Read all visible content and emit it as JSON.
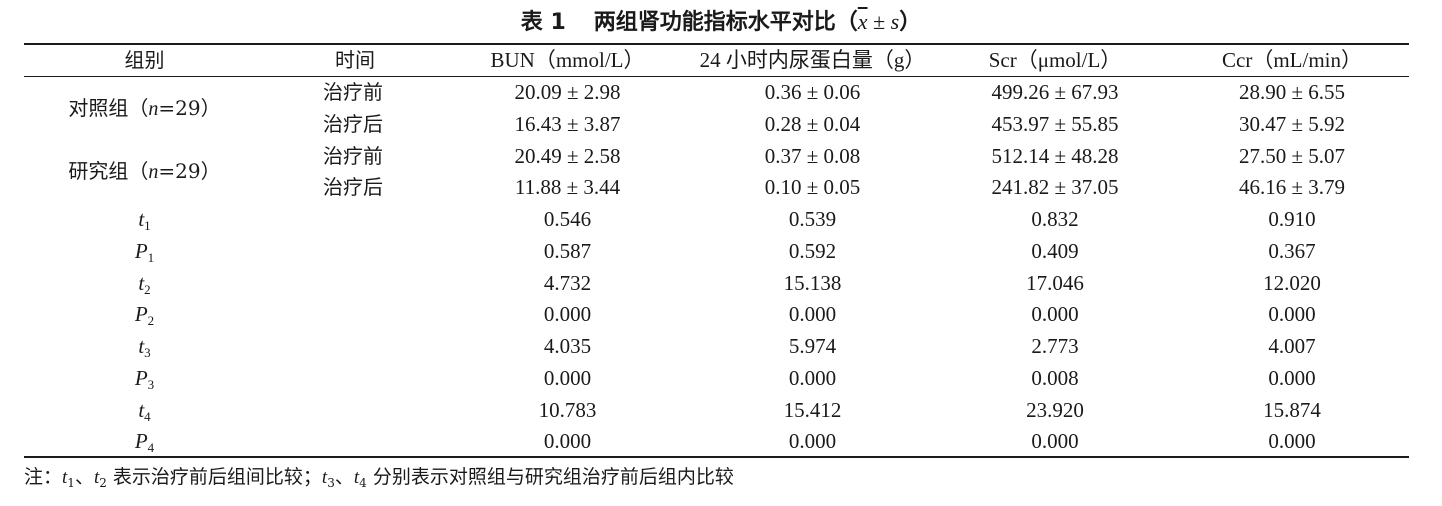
{
  "title": {
    "number": "表 1",
    "text": "两组肾功能指标水平对比",
    "open": "（",
    "xbar": "x",
    "pm": " ± ",
    "s": "s",
    "close": "）"
  },
  "header": {
    "group": "组别",
    "time": "时间",
    "bun": "BUN（mmol/L）",
    "urine": "24 小时内尿蛋白量（g）",
    "scr": "Scr（μmol/L）",
    "ccr": "Ccr（mL/min）"
  },
  "groups": [
    {
      "name": "对照组",
      "n_open": "（",
      "n_var": "n",
      "n_val": "=29",
      "n_close": "）",
      "rows": [
        {
          "time": "治疗前",
          "bun": "20.09 ± 2.98",
          "urine": "0.36 ± 0.06",
          "scr": "499.26 ± 67.93",
          "ccr": "28.90 ± 6.55"
        },
        {
          "time": "治疗后",
          "bun": "16.43 ± 3.87",
          "urine": "0.28 ± 0.04",
          "scr": "453.97 ± 55.85",
          "ccr": "30.47 ± 5.92"
        }
      ]
    },
    {
      "name": "研究组",
      "n_open": "（",
      "n_var": "n",
      "n_val": "=29",
      "n_close": "）",
      "rows": [
        {
          "time": "治疗前",
          "bun": "20.49 ± 2.58",
          "urine": "0.37 ± 0.08",
          "scr": "512.14 ± 48.28",
          "ccr": "27.50 ± 5.07"
        },
        {
          "time": "治疗后",
          "bun": "11.88 ± 3.44",
          "urine": "0.10 ± 0.05",
          "scr": "241.82 ± 37.05",
          "ccr": "46.16 ± 3.79"
        }
      ]
    }
  ],
  "stats": [
    {
      "sym": "t",
      "sub": "1",
      "bun": "0.546",
      "urine": "0.539",
      "scr": "0.832",
      "ccr": "0.910"
    },
    {
      "sym": "P",
      "sub": "1",
      "bun": "0.587",
      "urine": "0.592",
      "scr": "0.409",
      "ccr": "0.367"
    },
    {
      "sym": "t",
      "sub": "2",
      "bun": "4.732",
      "urine": "15.138",
      "scr": "17.046",
      "ccr": "12.020"
    },
    {
      "sym": "P",
      "sub": "2",
      "bun": "0.000",
      "urine": "0.000",
      "scr": "0.000",
      "ccr": "0.000"
    },
    {
      "sym": "t",
      "sub": "3",
      "bun": "4.035",
      "urine": "5.974",
      "scr": "2.773",
      "ccr": "4.007"
    },
    {
      "sym": "P",
      "sub": "3",
      "bun": "0.000",
      "urine": "0.000",
      "scr": "0.008",
      "ccr": "0.000"
    },
    {
      "sym": "t",
      "sub": "4",
      "bun": "10.783",
      "urine": "15.412",
      "scr": "23.920",
      "ccr": "15.874"
    },
    {
      "sym": "P",
      "sub": "4",
      "bun": "0.000",
      "urine": "0.000",
      "scr": "0.000",
      "ccr": "0.000"
    }
  ],
  "note": {
    "prefix": "注：",
    "t1": "t",
    "t1_sub": "1",
    "sep1": "、",
    "t2": "t",
    "t2_sub": "2",
    "text1": " 表示治疗前后组间比较；",
    "t3": "t",
    "t3_sub": "3",
    "sep2": "、",
    "t4": "t",
    "t4_sub": "4",
    "text2": " 分别表示对照组与研究组治疗前后组内比较"
  }
}
